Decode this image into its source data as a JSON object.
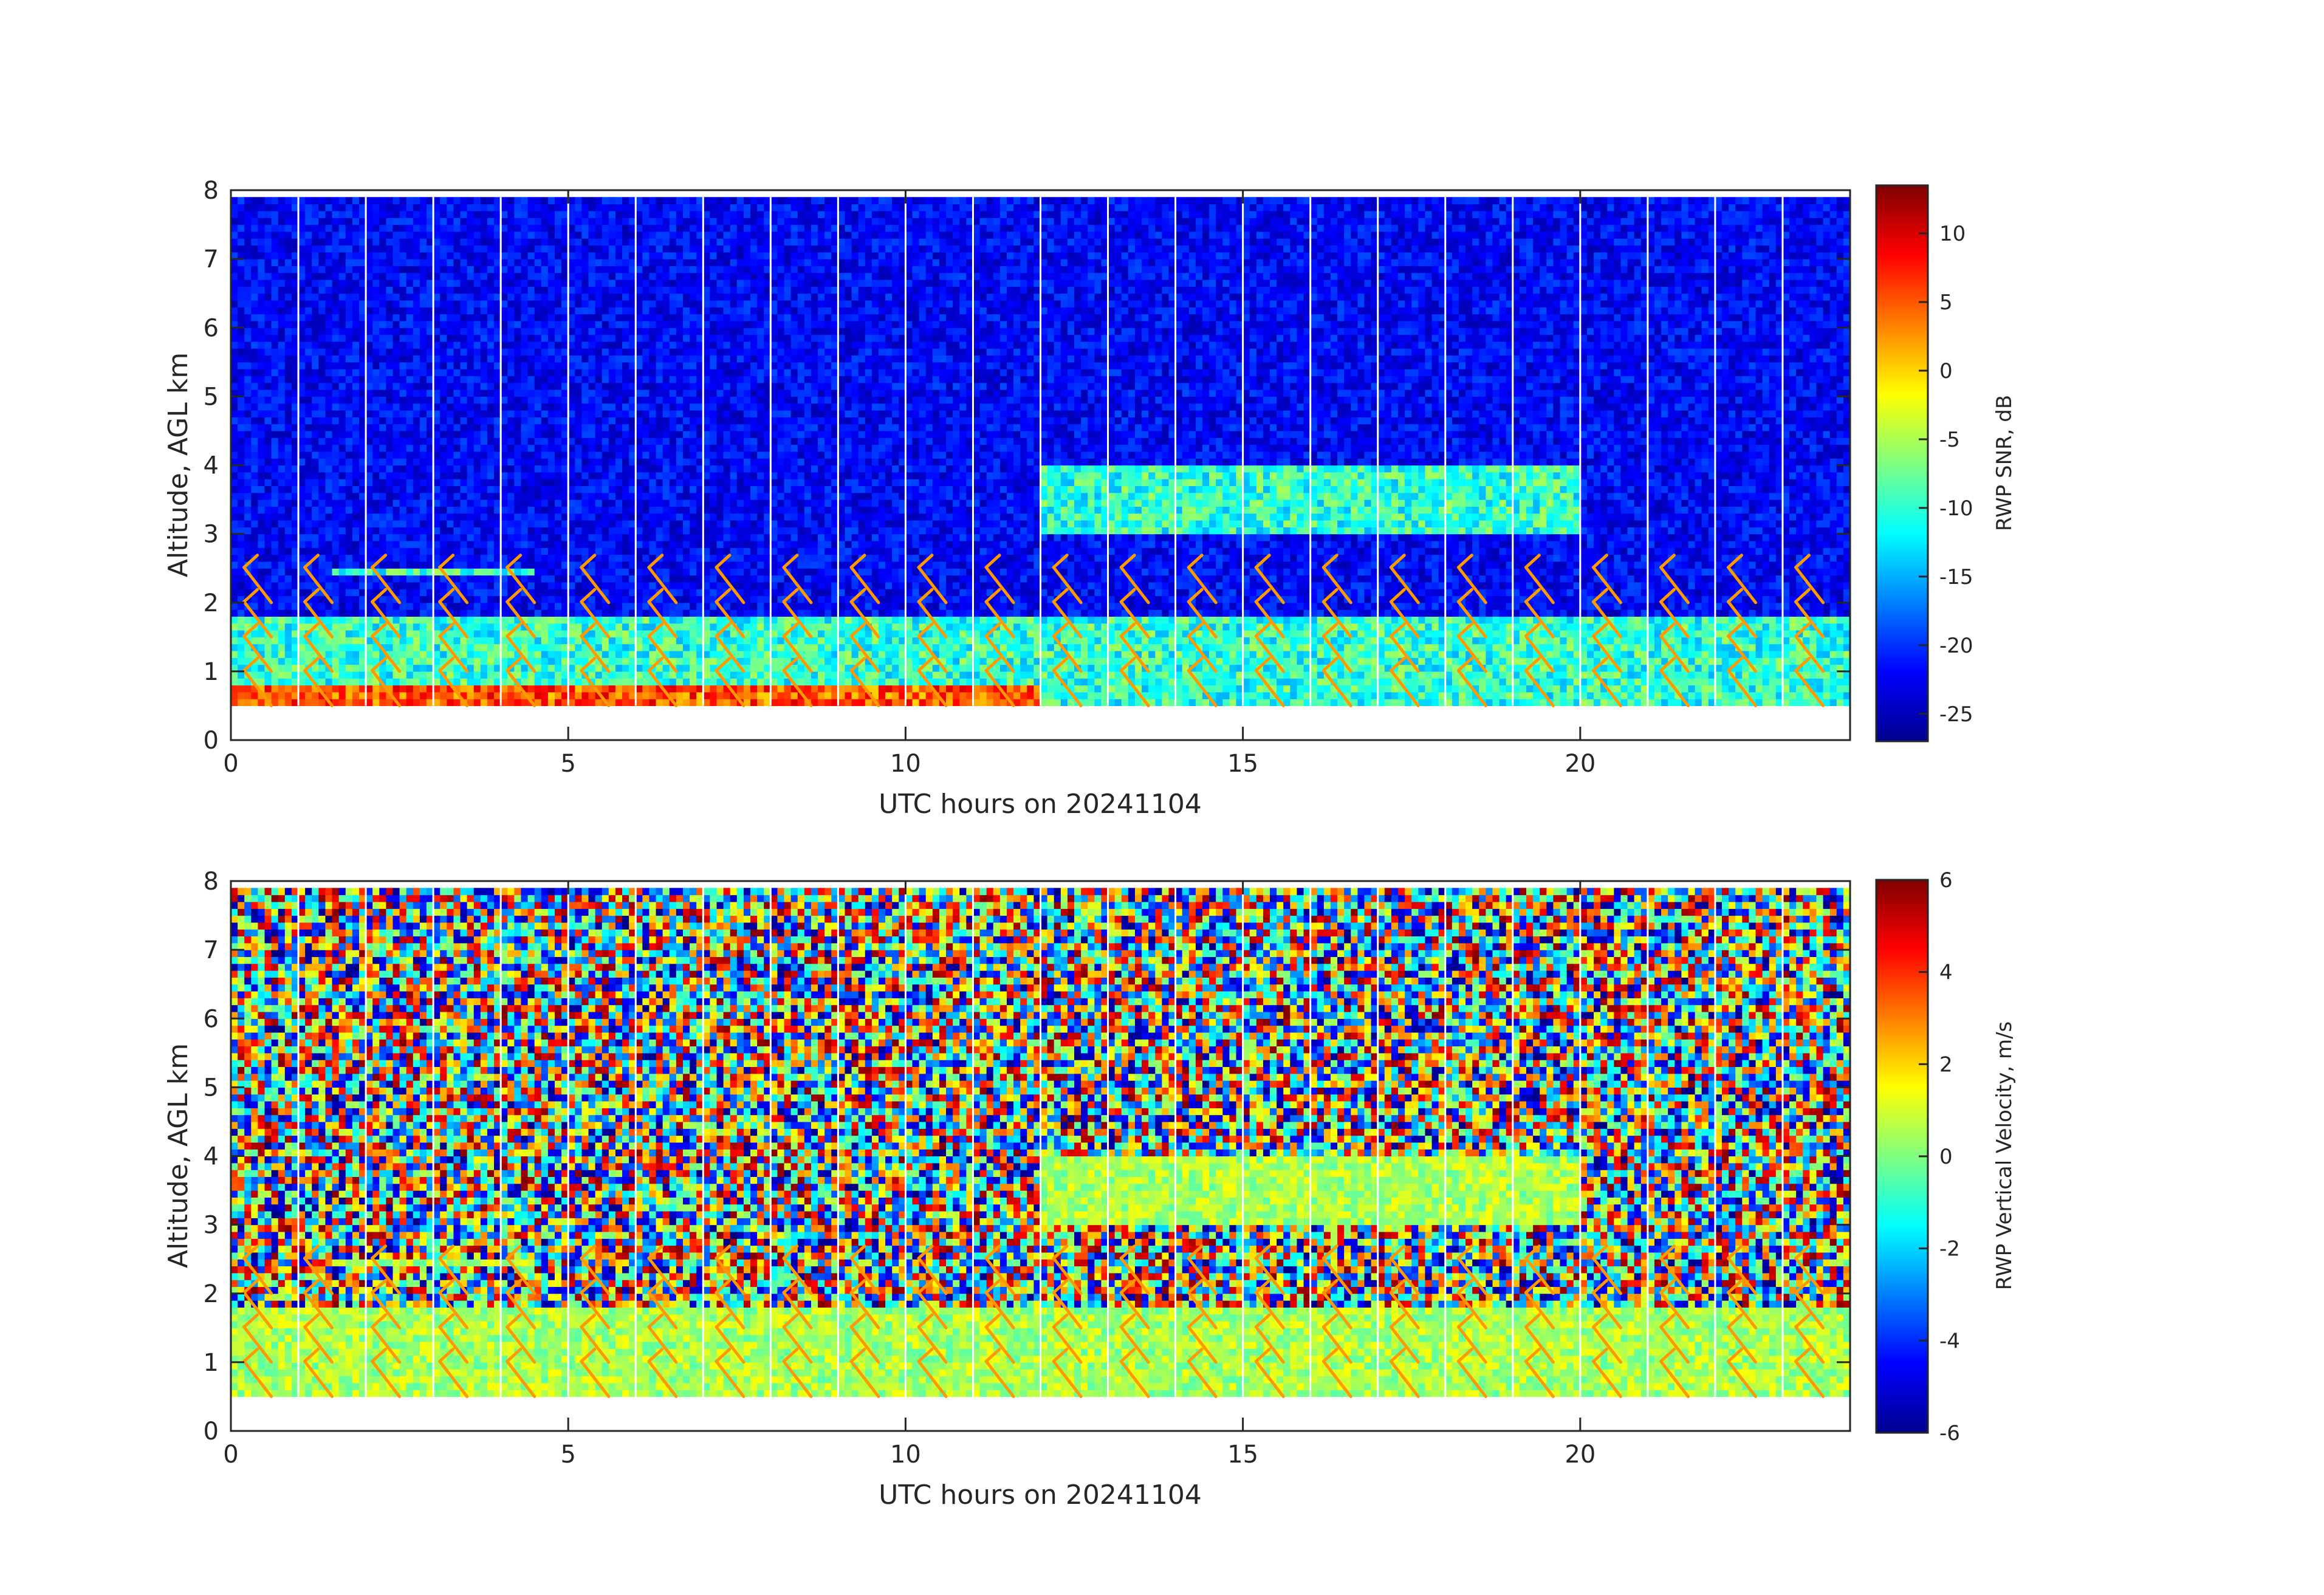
{
  "chart_data": [
    {
      "type": "heatmap",
      "xlabel": "UTC hours on 20241104",
      "ylabel": "Altitude, AGL km",
      "xlim": [
        0,
        24
      ],
      "ylim": [
        0,
        8
      ],
      "xticks": [
        "0",
        "5",
        "10",
        "15",
        "20"
      ],
      "yticks": [
        "0",
        "1",
        "2",
        "3",
        "4",
        "5",
        "6",
        "7",
        "8"
      ],
      "colorbar": {
        "label": "RWP SNR, dB",
        "range": [
          -27,
          13.5
        ],
        "ticks": [
          "10",
          "5",
          "0",
          "-5",
          "-10",
          "-15",
          "-20",
          "-25"
        ],
        "colormap": "jet"
      },
      "data_range_km": [
        0.5,
        7.9
      ],
      "layers": [
        {
          "x": [
            0,
            24
          ],
          "altitude_km": [
            0.5,
            1.8
          ],
          "value_db": -10
        },
        {
          "x": [
            0,
            12
          ],
          "altitude_km": [
            0.5,
            0.8
          ],
          "value_db": 5
        },
        {
          "x": [
            1.5,
            4.5
          ],
          "altitude_km": [
            2.4,
            2.5
          ],
          "value_db": -10
        },
        {
          "x": [
            12,
            20
          ],
          "altitude_km": [
            3.0,
            4.0
          ],
          "value_db": -10
        }
      ],
      "background_value_db": -22
    },
    {
      "type": "heatmap",
      "xlabel": "UTC hours on 20241104",
      "ylabel": "Altitude, AGL km",
      "xlim": [
        0,
        24
      ],
      "ylim": [
        0,
        8
      ],
      "xticks": [
        "0",
        "5",
        "10",
        "15",
        "20"
      ],
      "yticks": [
        "0",
        "1",
        "2",
        "3",
        "4",
        "5",
        "6",
        "7",
        "8"
      ],
      "colorbar": {
        "label": "RWP Vertical Velocity, m/s",
        "range": [
          -6,
          6
        ],
        "ticks": [
          "6",
          "4",
          "2",
          "0",
          "-2",
          "-4",
          "-6"
        ],
        "colormap": "jet"
      },
      "data_range_km": [
        0.5,
        7.9
      ],
      "layers": [
        {
          "x": [
            0,
            24
          ],
          "altitude_km": [
            0.5,
            1.8
          ],
          "value_ms": 0.5
        },
        {
          "x": [
            1.5,
            4.5
          ],
          "altitude_km": [
            2.4,
            2.5
          ],
          "value_ms": 0.5
        },
        {
          "x": [
            12,
            20
          ],
          "altitude_km": [
            3.0,
            4.0
          ],
          "value_ms": 0.5
        }
      ],
      "background": "random noise between -6 and 6"
    }
  ],
  "wind_barbs": {
    "color": "#ff9900",
    "times_utc": [
      0.6,
      1.5,
      2.5,
      3.5,
      4.5,
      5.6,
      6.6,
      7.6,
      8.6,
      9.6,
      10.6,
      11.6,
      12.6,
      13.6,
      14.6,
      15.6,
      16.6,
      17.6,
      18.6,
      19.6,
      20.6,
      21.6,
      22.6,
      23.6
    ],
    "levels_km": [
      0.5,
      1.0,
      1.5,
      2.0
    ]
  },
  "colors": {
    "frame": "#262626",
    "missing_data": "#ffffff",
    "gap_lines": "#ffffff"
  }
}
